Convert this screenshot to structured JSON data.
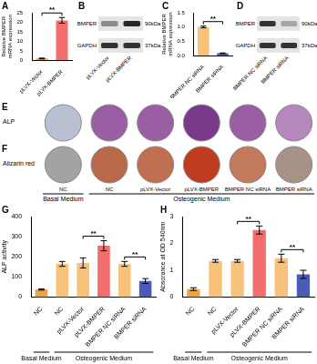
{
  "chart_data": [
    {
      "panel": "A",
      "type": "bar",
      "y_label": "Relative BMPER mRNA expression",
      "categories": [
        "pLVX-Vector",
        "pLVX-BMPER"
      ],
      "values": [
        1,
        21
      ],
      "errors": [
        0.2,
        1.5
      ],
      "colors": [
        "#f5a623",
        "#f26d6d"
      ],
      "ylim": [
        0,
        25
      ],
      "yticks": [
        0,
        5,
        10,
        15,
        20,
        25
      ],
      "grid": false,
      "significance": [
        {
          "from": 0,
          "to": 1,
          "label": "**"
        }
      ]
    },
    {
      "panel": "C",
      "type": "bar",
      "y_label": "Relative BMPER mRNA expression",
      "categories": [
        "BMPER NC siRNA",
        "BMPER siRNA"
      ],
      "values": [
        1.0,
        0.08
      ],
      "errors": [
        0.03,
        0.01
      ],
      "colors": [
        "#f8c27a",
        "#4a5cb5"
      ],
      "ylim": [
        0,
        1.5
      ],
      "yticks": [
        {
          "value": 0,
          "label": "0.0"
        },
        {
          "value": 0.5,
          "label": "0.5"
        },
        {
          "value": 1,
          "label": "1.0"
        },
        {
          "value": 1.5,
          "label": "1.5"
        }
      ],
      "grid": false,
      "significance": [
        {
          "from": 0,
          "to": 1,
          "label": "**"
        }
      ]
    },
    {
      "panel": "G",
      "type": "bar",
      "y_label": "ALP activity",
      "categories": [
        "NC",
        "NC",
        "pLVX-Vector",
        "pLVX-BMPER",
        "BMPER NC siRNA",
        "BMPER siRNA"
      ],
      "values": [
        38,
        165,
        170,
        255,
        165,
        80
      ],
      "errors": [
        3,
        12,
        25,
        25,
        12,
        12
      ],
      "colors": [
        "#f0a24a",
        "#f8c27a",
        "#f8c27a",
        "#f26d6d",
        "#f8c27a",
        "#4a5cb5"
      ],
      "ylim": [
        0,
        400
      ],
      "yticks": [
        0,
        100,
        200,
        300,
        400
      ],
      "grid": false,
      "significance": [
        {
          "from": 2,
          "to": 3,
          "label": "**"
        },
        {
          "from": 4,
          "to": 5,
          "label": "**"
        }
      ],
      "groups": [
        {
          "label": "Basal Medium",
          "span": 1
        },
        {
          "label": "Osteogenic Medium",
          "span": 5
        }
      ]
    },
    {
      "panel": "H",
      "type": "bar",
      "y_label": "Absorance at OD 540nm",
      "categories": [
        "NC",
        "NC",
        "pLVX-Vector",
        "pLVX-BMPER",
        "BMPER NC siRNA",
        "BMPER siRNA"
      ],
      "values": [
        0.3,
        1.35,
        1.35,
        2.5,
        1.45,
        0.85
      ],
      "errors": [
        0.05,
        0.05,
        0.05,
        0.15,
        0.15,
        0.15
      ],
      "colors": [
        "#f0a24a",
        "#f8c27a",
        "#f8c27a",
        "#f26d6d",
        "#f8c27a",
        "#4a5cb5"
      ],
      "ylim": [
        0,
        3
      ],
      "yticks": [
        0,
        1,
        2,
        3
      ],
      "grid": false,
      "significance": [
        {
          "from": 2,
          "to": 3,
          "label": "**"
        },
        {
          "from": 4,
          "to": 5,
          "label": "**"
        }
      ],
      "groups": [
        {
          "label": "Basal Medium",
          "span": 1
        },
        {
          "label": "Osteogenic Medium",
          "span": 5
        }
      ]
    }
  ],
  "blots": [
    {
      "panel": "B",
      "lanes": [
        "pLVX-Vector",
        "pLVX-BMPER"
      ],
      "rows": [
        {
          "protein": "BMPER",
          "size": "90kDa",
          "band_darkness": [
            0.45,
            0.85
          ]
        },
        {
          "protein": "GAPDH",
          "size": "37kDa",
          "band_darkness": [
            0.8,
            0.8
          ]
        }
      ]
    },
    {
      "panel": "D",
      "lanes": [
        "BMPER NC siRNA",
        "BMPER siRNA"
      ],
      "rows": [
        {
          "protein": "BMPER",
          "size": "90kDa",
          "band_darkness": [
            0.8,
            0.35
          ]
        },
        {
          "protein": "GAPDH",
          "size": "37kDa",
          "band_darkness": [
            0.8,
            0.8
          ]
        }
      ]
    }
  ],
  "stains": {
    "panels": [
      {
        "panel": "E",
        "label": "ALP",
        "colors": [
          "#b9c0d2",
          "#9a5fa2",
          "#9a5fa2",
          "#7a3a8c",
          "#9a5fa2",
          "#b487bd"
        ]
      },
      {
        "panel": "F",
        "label": "Alizarin red",
        "colors": [
          "#a3a3a3",
          "#b86a4a",
          "#c07050",
          "#c03c1e",
          "#c27a5a",
          "#a89288"
        ]
      }
    ],
    "lanes": [
      "NC",
      "NC",
      "pLVX-Vector",
      "pLVX-BMPER",
      "BMPER NC siRNA",
      "BMPER siRNA"
    ],
    "groups": [
      {
        "label": "Basal Medium",
        "span": 1
      },
      {
        "label": "Osteogenic Medium",
        "span": 5
      }
    ]
  }
}
